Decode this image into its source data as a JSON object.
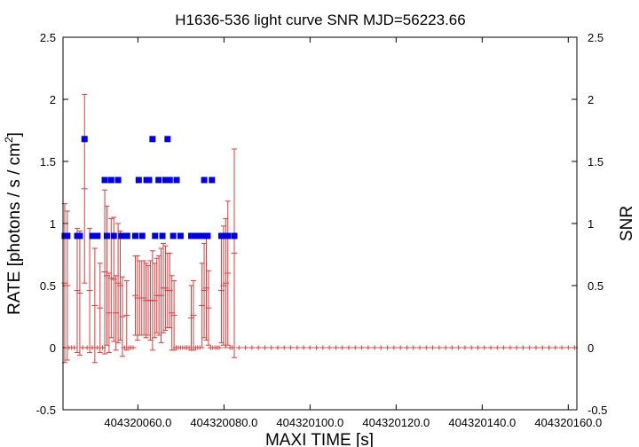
{
  "chart_data": {
    "type": "scatter",
    "title": "H1636-536 light curve  SNR MJD=56223.66",
    "xlabel": "MAXI TIME [s]",
    "ylabel_left": "RATE [photons / s / cm",
    "ylabel_left_sup": "2",
    "ylabel_left_close": "]",
    "ylabel_right": "SNR",
    "xlim": [
      404320042.6,
      404320162.0
    ],
    "ylim_left": [
      -0.5,
      2.5
    ],
    "ylim_right": [
      -0.5,
      2.5
    ],
    "y_ticks": [
      "-0.5",
      "0",
      "0.5",
      "1",
      "1.5",
      "2",
      "2.5"
    ],
    "y_tick_values": [
      -0.5,
      0,
      0.5,
      1,
      1.5,
      2,
      2.5
    ],
    "x_ticks": [
      "404320060.0",
      "404320080.0",
      "404320100.0",
      "404320120.0",
      "404320140.0",
      "404320160.0"
    ],
    "x_tick_values": [
      404320060,
      404320080,
      404320100,
      404320120,
      404320140,
      404320160
    ],
    "rate_color": "#dc3c3c",
    "snr_color": "#0000dd",
    "rate_series": [
      [
        404320043.0,
        0.52,
        0.64
      ],
      [
        404320043.6,
        0.5,
        0.6
      ],
      [
        404320044.0,
        0.0,
        0.0
      ],
      [
        404320044.6,
        0.0,
        0.0
      ],
      [
        404320045.2,
        0.0,
        0.0
      ],
      [
        404320045.9,
        0.46,
        0.5
      ],
      [
        404320046.5,
        0.44,
        0.5
      ],
      [
        404320047.2,
        0.0,
        0.0
      ],
      [
        404320047.6,
        1.28,
        0.76
      ],
      [
        404320048.2,
        0.0,
        0.0
      ],
      [
        404320048.8,
        0.46,
        0.5
      ],
      [
        404320049.4,
        0.0,
        0.0
      ],
      [
        404320050.0,
        0.34,
        0.46
      ],
      [
        404320050.6,
        0.0,
        0.0
      ],
      [
        404320051.2,
        0.32,
        0.36
      ],
      [
        404320051.8,
        0.0,
        0.0
      ],
      [
        404320052.3,
        0.61,
        0.66
      ],
      [
        404320052.8,
        0.58,
        0.56
      ],
      [
        404320053.3,
        0.28,
        0.32
      ],
      [
        404320053.8,
        0.56,
        0.48
      ],
      [
        404320054.4,
        0.55,
        0.5
      ],
      [
        404320054.9,
        0.28,
        0.3
      ],
      [
        404320055.4,
        0.52,
        0.48
      ],
      [
        404320055.9,
        0.5,
        0.44
      ],
      [
        404320056.4,
        0.25,
        0.32
      ],
      [
        404320056.9,
        0.0,
        0.0
      ],
      [
        404320057.4,
        0.26,
        0.28
      ],
      [
        404320057.9,
        0.0,
        0.0
      ],
      [
        404320058.4,
        0.0,
        0.0
      ],
      [
        404320058.9,
        0.0,
        0.0
      ],
      [
        404320059.4,
        0.42,
        0.32
      ],
      [
        404320059.9,
        0.4,
        0.34
      ],
      [
        404320060.4,
        0.4,
        0.3
      ],
      [
        404320060.9,
        0.4,
        0.3
      ],
      [
        404320061.4,
        0.4,
        0.3
      ],
      [
        404320061.9,
        0.38,
        0.3
      ],
      [
        404320062.4,
        0.38,
        0.28
      ],
      [
        404320062.9,
        0.38,
        0.32
      ],
      [
        404320063.4,
        0.38,
        0.4
      ],
      [
        404320063.9,
        0.38,
        0.3
      ],
      [
        404320064.4,
        0.42,
        0.3
      ],
      [
        404320064.9,
        0.42,
        0.32
      ],
      [
        404320065.4,
        0.42,
        0.38
      ],
      [
        404320065.9,
        0.48,
        0.36
      ],
      [
        404320066.4,
        0.48,
        0.34
      ],
      [
        404320066.9,
        0.46,
        0.3
      ],
      [
        404320067.4,
        0.46,
        0.3
      ],
      [
        404320067.9,
        0.28,
        0.3
      ],
      [
        404320068.4,
        0.26,
        0.28
      ],
      [
        404320068.9,
        0.0,
        0.0
      ],
      [
        404320069.4,
        0.0,
        0.0
      ],
      [
        404320069.9,
        0.0,
        0.0
      ],
      [
        404320070.4,
        0.0,
        0.0
      ],
      [
        404320070.9,
        0.0,
        0.0
      ],
      [
        404320071.4,
        0.0,
        0.0
      ],
      [
        404320071.9,
        0.0,
        0.0
      ],
      [
        404320072.4,
        0.24,
        0.26
      ],
      [
        404320072.9,
        0.26,
        0.28
      ],
      [
        404320073.4,
        0.0,
        0.0
      ],
      [
        404320073.9,
        0.0,
        0.0
      ],
      [
        404320074.4,
        0.0,
        0.0
      ],
      [
        404320074.9,
        0.34,
        0.34
      ],
      [
        404320075.4,
        0.46,
        0.38
      ],
      [
        404320075.9,
        0.48,
        0.42
      ],
      [
        404320076.4,
        0.32,
        0.3
      ],
      [
        404320076.9,
        0.0,
        0.0
      ],
      [
        404320077.4,
        0.0,
        0.0
      ],
      [
        404320077.9,
        0.0,
        0.0
      ],
      [
        404320078.4,
        0.0,
        0.0
      ],
      [
        404320078.9,
        0.0,
        0.0
      ],
      [
        404320079.4,
        0.46,
        0.42
      ],
      [
        404320079.9,
        0.5,
        0.48
      ],
      [
        404320080.4,
        0.52,
        0.52
      ],
      [
        404320080.9,
        0.6,
        0.58
      ],
      [
        404320081.4,
        0.0,
        0.0
      ],
      [
        404320081.9,
        0.0,
        0.0
      ],
      [
        404320082.4,
        0.76,
        0.84
      ],
      [
        404320083.5,
        0.0,
        0.0
      ],
      [
        404320085.0,
        0.0,
        0.0
      ],
      [
        404320086.5,
        0.0,
        0.0
      ],
      [
        404320088.0,
        0.0,
        0.0
      ],
      [
        404320089.5,
        0.0,
        0.0
      ],
      [
        404320091.0,
        0.0,
        0.0
      ],
      [
        404320092.5,
        0.0,
        0.0
      ],
      [
        404320094.0,
        0.0,
        0.0
      ],
      [
        404320095.5,
        0.0,
        0.0
      ],
      [
        404320097.0,
        0.0,
        0.0
      ],
      [
        404320098.5,
        0.0,
        0.0
      ],
      [
        404320100.0,
        0.0,
        0.0
      ],
      [
        404320101.5,
        0.0,
        0.0
      ],
      [
        404320103.0,
        0.0,
        0.0
      ],
      [
        404320104.5,
        0.0,
        0.0
      ],
      [
        404320106.0,
        0.0,
        0.0
      ],
      [
        404320107.5,
        0.0,
        0.0
      ],
      [
        404320109.0,
        0.0,
        0.0
      ],
      [
        404320110.5,
        0.0,
        0.0
      ],
      [
        404320112.0,
        0.0,
        0.0
      ],
      [
        404320113.5,
        0.0,
        0.0
      ],
      [
        404320115.0,
        0.0,
        0.0
      ],
      [
        404320116.5,
        0.0,
        0.0
      ],
      [
        404320118.0,
        0.0,
        0.0
      ],
      [
        404320119.5,
        0.0,
        0.0
      ],
      [
        404320121.0,
        0.0,
        0.0
      ],
      [
        404320122.5,
        0.0,
        0.0
      ],
      [
        404320124.0,
        0.0,
        0.0
      ],
      [
        404320125.5,
        0.0,
        0.0
      ],
      [
        404320127.0,
        0.0,
        0.0
      ],
      [
        404320128.5,
        0.0,
        0.0
      ],
      [
        404320130.0,
        0.0,
        0.0
      ],
      [
        404320131.5,
        0.0,
        0.0
      ],
      [
        404320133.0,
        0.0,
        0.0
      ],
      [
        404320134.5,
        0.0,
        0.0
      ],
      [
        404320136.0,
        0.0,
        0.0
      ],
      [
        404320137.5,
        0.0,
        0.0
      ],
      [
        404320139.0,
        0.0,
        0.0
      ],
      [
        404320140.5,
        0.0,
        0.0
      ],
      [
        404320142.0,
        0.0,
        0.0
      ],
      [
        404320143.5,
        0.0,
        0.0
      ],
      [
        404320145.0,
        0.0,
        0.0
      ],
      [
        404320146.5,
        0.0,
        0.0
      ],
      [
        404320148.0,
        0.0,
        0.0
      ],
      [
        404320149.5,
        0.0,
        0.0
      ],
      [
        404320151.0,
        0.0,
        0.0
      ],
      [
        404320152.5,
        0.0,
        0.0
      ],
      [
        404320154.0,
        0.0,
        0.0
      ],
      [
        404320155.5,
        0.0,
        0.0
      ],
      [
        404320157.0,
        0.0,
        0.0
      ],
      [
        404320158.5,
        0.0,
        0.0
      ],
      [
        404320160.0,
        0.0,
        0.0
      ],
      [
        404320161.5,
        0.0,
        0.0
      ]
    ],
    "snr_series": [
      [
        404320043.0,
        0.9
      ],
      [
        404320043.6,
        0.9
      ],
      [
        404320045.9,
        0.9
      ],
      [
        404320046.5,
        0.9
      ],
      [
        404320047.6,
        1.68
      ],
      [
        404320049.4,
        0.9
      ],
      [
        404320050.6,
        0.9
      ],
      [
        404320052.3,
        1.35
      ],
      [
        404320052.8,
        0.9
      ],
      [
        404320053.8,
        1.35
      ],
      [
        404320054.4,
        0.9
      ],
      [
        404320055.4,
        1.35
      ],
      [
        404320056.2,
        0.9
      ],
      [
        404320057.5,
        0.9
      ],
      [
        404320059.4,
        0.9
      ],
      [
        404320060.2,
        1.35
      ],
      [
        404320061.0,
        0.9
      ],
      [
        404320062.0,
        1.35
      ],
      [
        404320062.6,
        1.35
      ],
      [
        404320063.4,
        1.68
      ],
      [
        404320064.0,
        0.9
      ],
      [
        404320064.8,
        1.35
      ],
      [
        404320065.7,
        0.9
      ],
      [
        404320066.4,
        1.35
      ],
      [
        404320066.9,
        1.68
      ],
      [
        404320067.4,
        1.35
      ],
      [
        404320068.2,
        0.9
      ],
      [
        404320069.0,
        1.35
      ],
      [
        404320069.9,
        0.9
      ],
      [
        404320072.4,
        0.9
      ],
      [
        404320073.6,
        0.9
      ],
      [
        404320074.9,
        0.9
      ],
      [
        404320075.4,
        1.35
      ],
      [
        404320076.2,
        0.9
      ],
      [
        404320077.2,
        1.35
      ],
      [
        404320079.4,
        0.9
      ],
      [
        404320079.9,
        0.9
      ],
      [
        404320080.4,
        0.9
      ],
      [
        404320080.9,
        0.9
      ],
      [
        404320082.4,
        0.9
      ]
    ]
  }
}
